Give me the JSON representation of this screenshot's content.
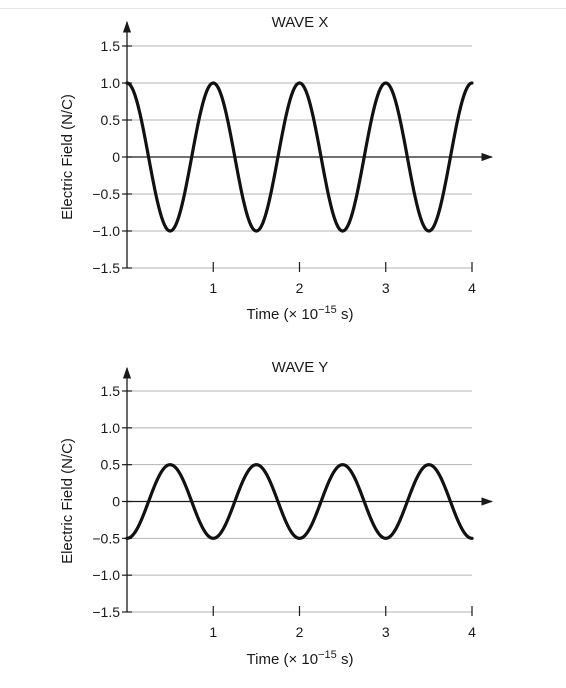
{
  "chart_data": [
    {
      "type": "line",
      "title": "WAVE X",
      "xlabel": "Time (× 10",
      "xlabel_exp": "−15",
      "xlabel_suffix": " s)",
      "ylabel": "Electric Field (N/C)",
      "xlim": [
        0,
        4
      ],
      "ylim": [
        -1.5,
        1.5
      ],
      "x_ticks": [
        1,
        2,
        3,
        4
      ],
      "x_tick_labels": [
        "1",
        "2",
        "3",
        "4"
      ],
      "y_ticks": [
        1.5,
        1.0,
        0.5,
        0,
        -0.5,
        -1.0,
        -1.5
      ],
      "y_tick_labels": [
        "1.5",
        "1.0",
        "0.5",
        "0",
        "−0.5",
        "−1.0",
        "−1.5"
      ],
      "grid": "horizontal",
      "series": [
        {
          "function": "cosine",
          "amplitude": 1.0,
          "period": 1.0,
          "phase_shift": 0
        }
      ]
    },
    {
      "type": "line",
      "title": "WAVE Y",
      "xlabel": "Time (× 10",
      "xlabel_exp": "−15",
      "xlabel_suffix": " s)",
      "ylabel": "Electric Field (N/C)",
      "xlim": [
        0,
        4
      ],
      "ylim": [
        -1.5,
        1.5
      ],
      "x_ticks": [
        1,
        2,
        3,
        4
      ],
      "x_tick_labels": [
        "1",
        "2",
        "3",
        "4"
      ],
      "y_ticks": [
        1.5,
        1.0,
        0.5,
        0,
        -0.5,
        -1.0,
        -1.5
      ],
      "y_tick_labels": [
        "1.5",
        "1.0",
        "0.5",
        "0",
        "−0.5",
        "−1.0",
        "−1.5"
      ],
      "grid": "horizontal",
      "series": [
        {
          "function": "cosine",
          "amplitude": 0.5,
          "period": 1.0,
          "phase_shift": 0.5
        }
      ]
    }
  ]
}
